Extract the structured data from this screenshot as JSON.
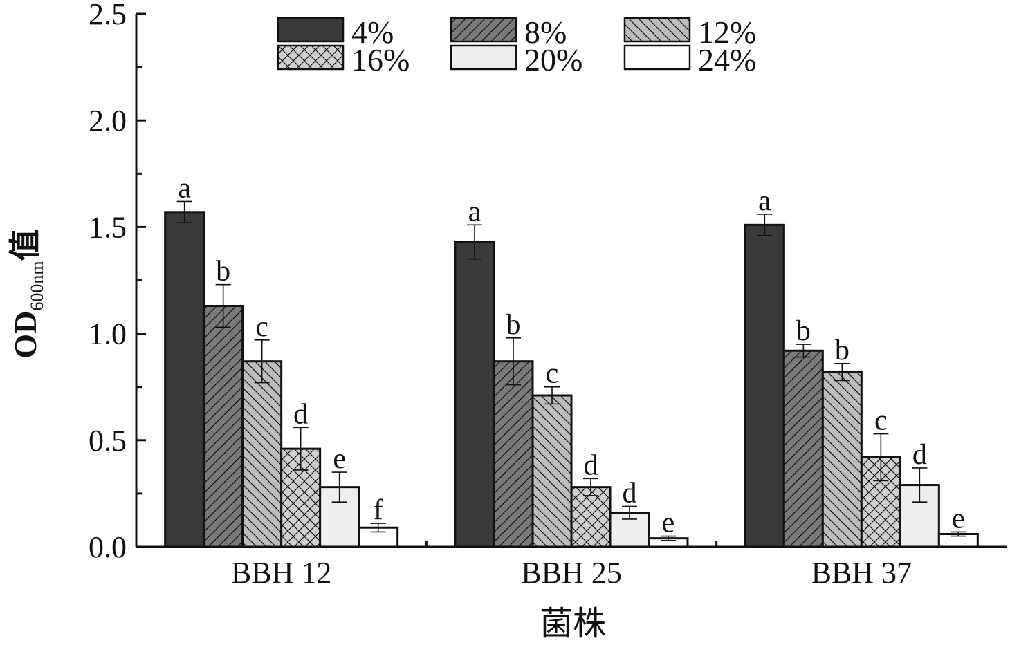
{
  "chart_data": {
    "type": "bar",
    "title": "",
    "xlabel": "菌株",
    "ylabel": "OD",
    "ylabel_sub": "600nm",
    "ylabel_suffix": "值",
    "ylim": [
      0,
      2.5
    ],
    "yticks": [
      "0.0",
      "0.5",
      "1.0",
      "1.5",
      "2.0",
      "2.5"
    ],
    "ytick_values": [
      0,
      0.5,
      1.0,
      1.5,
      2.0,
      2.5
    ],
    "categories": [
      "BBH 12",
      "BBH 25",
      "BBH 37"
    ],
    "legend_position": "top",
    "series": [
      {
        "name": "4%",
        "fill": "#3a3a3a",
        "pattern": "solid",
        "values": [
          1.57,
          1.43,
          1.51
        ],
        "errors": [
          0.05,
          0.08,
          0.05
        ],
        "letters": [
          "a",
          "a",
          "a"
        ]
      },
      {
        "name": "8%",
        "fill": "#7a7a7a",
        "pattern": "hatch-fwd",
        "values": [
          1.13,
          0.87,
          0.92
        ],
        "errors": [
          0.1,
          0.11,
          0.03
        ],
        "letters": [
          "b",
          "b",
          "b"
        ]
      },
      {
        "name": "12%",
        "fill": "#bdbdbd",
        "pattern": "hatch-back",
        "values": [
          0.87,
          0.71,
          0.82
        ],
        "errors": [
          0.1,
          0.04,
          0.04
        ],
        "letters": [
          "c",
          "c",
          "b"
        ]
      },
      {
        "name": "16%",
        "fill": "#cfcfcf",
        "pattern": "cross",
        "values": [
          0.46,
          0.28,
          0.42
        ],
        "errors": [
          0.1,
          0.04,
          0.11
        ],
        "letters": [
          "d",
          "d",
          "c"
        ]
      },
      {
        "name": "20%",
        "fill": "#eeeeee",
        "pattern": "solid",
        "values": [
          0.28,
          0.16,
          0.29
        ],
        "errors": [
          0.07,
          0.03,
          0.08
        ],
        "letters": [
          "e",
          "d",
          "d"
        ]
      },
      {
        "name": "24%",
        "fill": "#ffffff",
        "pattern": "solid",
        "values": [
          0.09,
          0.04,
          0.06
        ],
        "errors": [
          0.02,
          0.01,
          0.01
        ],
        "letters": [
          "f",
          "e",
          "e"
        ]
      }
    ]
  }
}
